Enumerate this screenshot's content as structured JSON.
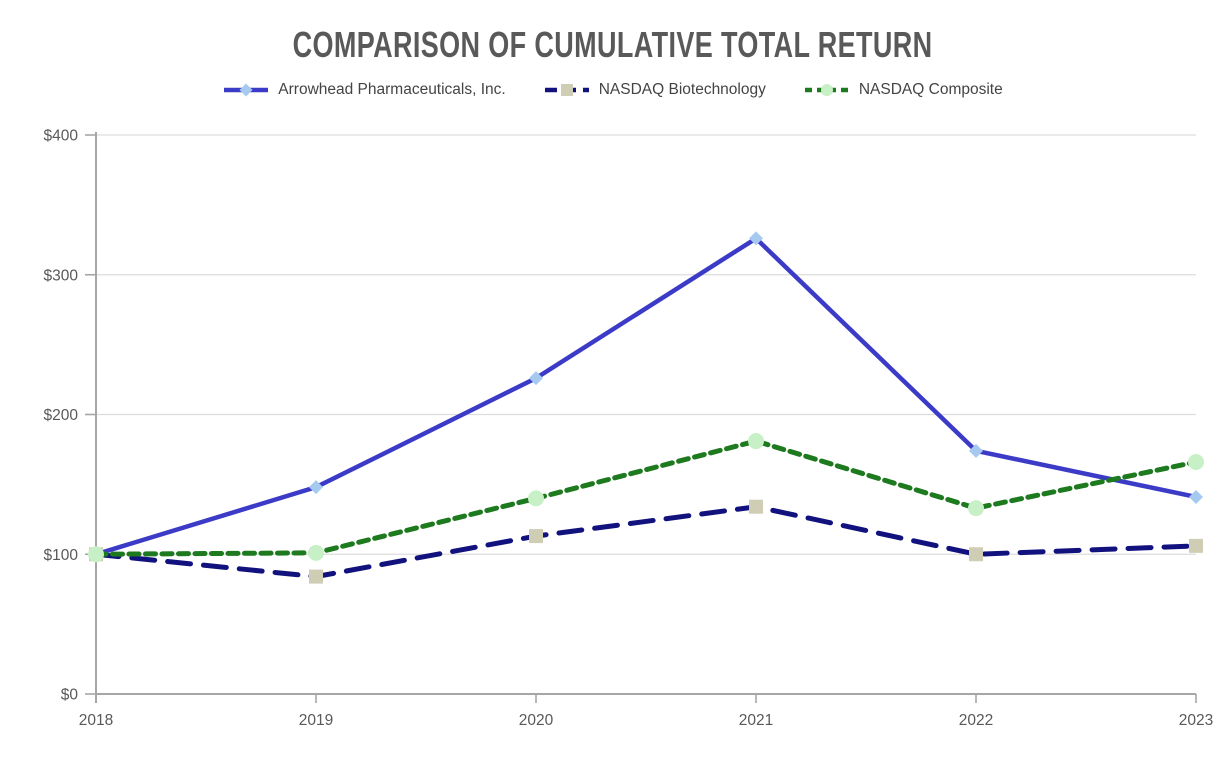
{
  "page": {
    "background": "#FFFFFF"
  },
  "chart_data": {
    "type": "line",
    "title": "COMPARISON OF CUMULATIVE TOTAL RETURN",
    "categories": [
      "2018",
      "2019",
      "2020",
      "2021",
      "2022",
      "2023"
    ],
    "y_ticks": [
      0,
      100,
      200,
      300,
      400
    ],
    "y_tick_labels": [
      "$0",
      "$100",
      "$200",
      "$300",
      "$400"
    ],
    "ylim": [
      0,
      400
    ],
    "grid": "horizontal",
    "legend_position": "top",
    "axis_color": "#A6A6A6",
    "gridline_color": "#DDDDDD",
    "label_color": "#595959",
    "title_color": "#595959",
    "series": [
      {
        "name": "Arrowhead Pharmaceuticals, Inc.",
        "values": [
          100,
          148,
          226,
          326,
          174,
          141
        ],
        "line_color": "#3B3BC8",
        "line_style": "solid",
        "line_width": 4.5,
        "marker": "diamond",
        "marker_color": "#A6C9F0"
      },
      {
        "name": "NASDAQ Biotechnology",
        "values": [
          100,
          84,
          113,
          134,
          100,
          106
        ],
        "line_color": "#12127E",
        "line_style": "long-dash",
        "line_width": 5,
        "marker": "square",
        "marker_color": "#CFCDB4"
      },
      {
        "name": "NASDAQ Composite",
        "values": [
          100,
          101,
          140,
          181,
          133,
          166
        ],
        "line_color": "#1E7A1E",
        "line_style": "short-dash",
        "line_width": 5,
        "marker": "circle",
        "marker_color": "#C7F0C7"
      }
    ]
  }
}
